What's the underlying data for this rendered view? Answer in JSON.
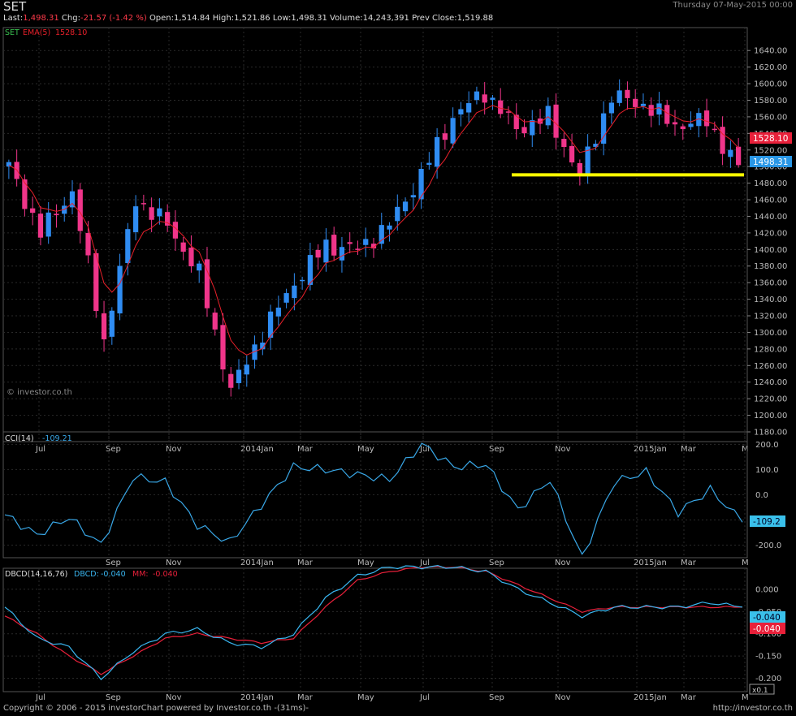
{
  "header": {
    "symbol": "SET",
    "datetime": "Thursday 07-May-2015 00:00",
    "last_label": "Last:",
    "last": "1,498.31",
    "chg_label": "Chg:",
    "chg": "-21.57 (-1.42 %)",
    "open_label": "Open:",
    "open": "1,514.84",
    "high_label": "High:",
    "high": "1,521.86",
    "low_label": "Low:",
    "low": "1,498.31",
    "volume_label": "Volume:",
    "volume": "14,243,391",
    "prev_label": "Prev Close:",
    "prev": "1,519.88"
  },
  "colors": {
    "up": "#2f8cf2",
    "down": "#f0358a",
    "ema": "#e8202a",
    "cci": "#39a8e8",
    "dbcd": "#39b6f0",
    "mm": "#e8203a",
    "support": "#ffff00",
    "grid": "#2a2a2a"
  },
  "main_panel": {
    "ema_label": "EMA(5)",
    "ema_value": "1528.10",
    "set_tag": "SET",
    "watermark": "© investor.co.th",
    "last_badge": "1528.10",
    "support_badge": "1498.31",
    "support_level": 1490,
    "y_ticks": [
      "1640.00",
      "1620.00",
      "1600.00",
      "1580.00",
      "1560.00",
      "1540.00",
      "1520.00",
      "1500.00",
      "1480.00",
      "1460.00",
      "1440.00",
      "1420.00",
      "1400.00",
      "1380.00",
      "1360.00",
      "1340.00",
      "1320.00",
      "1300.00",
      "1280.00",
      "1260.00",
      "1240.00",
      "1220.00",
      "1200.00",
      "1180.00"
    ],
    "x_ticks": [
      "Jul",
      "Sep",
      "Nov",
      "2014Jan",
      "Mar",
      "May",
      "Jul",
      "Sep",
      "Nov",
      "2015Jan",
      "Mar",
      "M"
    ]
  },
  "cci_panel": {
    "title": "CCI(14)",
    "value": "-109.21",
    "badge": "-109.2",
    "y_ticks": [
      "200.0",
      "100.0",
      "0.0",
      "-100.0",
      "-200.0"
    ],
    "x_ticks": [
      "Sep",
      "Nov",
      "2014Jan",
      "Mar",
      "May",
      "Jul",
      "Sep",
      "Nov",
      "2015Jan",
      "Mar",
      "M"
    ]
  },
  "dbcd_panel": {
    "title": "DBCD(14,16,76)",
    "dbcd_label": "DBCD:",
    "dbcd_value": "-0.040",
    "mm_label": "MM:",
    "mm_value": "-0.040",
    "badge_dbcd": "-0.040",
    "badge_mm": "-0.040",
    "scale_badge": "x0.1",
    "y_ticks": [
      "0.000",
      "-0.050",
      "-0.100",
      "-0.150",
      "-0.200"
    ],
    "x_ticks": [
      "Jul",
      "Sep",
      "Nov",
      "2014Jan",
      "Mar",
      "May",
      "Jul",
      "Sep",
      "Nov",
      "2015Jan",
      "Mar",
      "M"
    ]
  },
  "footer": {
    "copyright": "Copyright © 2006 - 2015 investorChart powered by Investor.co.th -(31ms)-",
    "url": "http://investor.co.th"
  },
  "chart_data": [
    {
      "type": "candlestick",
      "title": "SET",
      "series": [
        {
          "name": "SET",
          "x": [
            "2013-06",
            "2013-07",
            "2013-08",
            "2013-09",
            "2013-10",
            "2013-11",
            "2013-12",
            "2014-01",
            "2014-02",
            "2014-03",
            "2014-04",
            "2014-05",
            "2014-06",
            "2014-07",
            "2014-08",
            "2014-09",
            "2014-10",
            "2014-11",
            "2014-12",
            "2015-01",
            "2015-02",
            "2015-03",
            "2015-04",
            "2015-05"
          ],
          "close": [
            1500,
            1420,
            1470,
            1290,
            1460,
            1430,
            1370,
            1230,
            1300,
            1360,
            1405,
            1400,
            1430,
            1490,
            1560,
            1590,
            1545,
            1560,
            1490,
            1585,
            1575,
            1550,
            1555,
            1498.31
          ]
        }
      ],
      "ema_name": "EMA(5)",
      "ylim": [
        1180,
        1650
      ]
    },
    {
      "type": "line",
      "title": "CCI(14)",
      "x": [
        "2013-06",
        "2013-07",
        "2013-08",
        "2013-09",
        "2013-10",
        "2013-11",
        "2013-12",
        "2014-01",
        "2014-02",
        "2014-03",
        "2014-04",
        "2014-05",
        "2014-06",
        "2014-07",
        "2014-08",
        "2014-09",
        "2014-10",
        "2014-11",
        "2014-12",
        "2015-01",
        "2015-02",
        "2015-03",
        "2015-04",
        "2015-05"
      ],
      "series": [
        {
          "name": "CCI(14)",
          "values": [
            -80,
            -160,
            -90,
            -200,
            70,
            50,
            -120,
            -190,
            -40,
            110,
            100,
            80,
            60,
            200,
            110,
            120,
            -60,
            60,
            -250,
            50,
            90,
            -70,
            20,
            -109.21
          ]
        }
      ],
      "ylim": [
        -250,
        230
      ]
    },
    {
      "type": "line",
      "title": "DBCD(14,16,76)",
      "x": [
        "2013-06",
        "2013-07",
        "2013-08",
        "2013-09",
        "2013-10",
        "2013-11",
        "2013-12",
        "2014-01",
        "2014-02",
        "2014-03",
        "2014-04",
        "2014-05",
        "2014-06",
        "2014-07",
        "2014-08",
        "2014-09",
        "2014-10",
        "2014-11",
        "2014-12",
        "2015-01",
        "2015-02",
        "2015-03",
        "2015-04",
        "2015-05"
      ],
      "series": [
        {
          "name": "DBCD",
          "values": [
            -0.04,
            -0.11,
            -0.13,
            -0.2,
            -0.14,
            -0.1,
            -0.09,
            -0.12,
            -0.13,
            -0.1,
            -0.02,
            0.03,
            0.05,
            0.05,
            0.05,
            0.04,
            0.0,
            -0.03,
            -0.06,
            -0.04,
            -0.04,
            -0.04,
            -0.03,
            -0.04
          ]
        },
        {
          "name": "MM",
          "values": [
            -0.06,
            -0.1,
            -0.15,
            -0.19,
            -0.15,
            -0.11,
            -0.1,
            -0.11,
            -0.12,
            -0.11,
            -0.04,
            0.02,
            0.04,
            0.05,
            0.05,
            0.04,
            0.01,
            -0.02,
            -0.05,
            -0.04,
            -0.04,
            -0.04,
            -0.04,
            -0.04
          ]
        }
      ],
      "ylim": [
        -0.23,
        0.04
      ]
    }
  ]
}
